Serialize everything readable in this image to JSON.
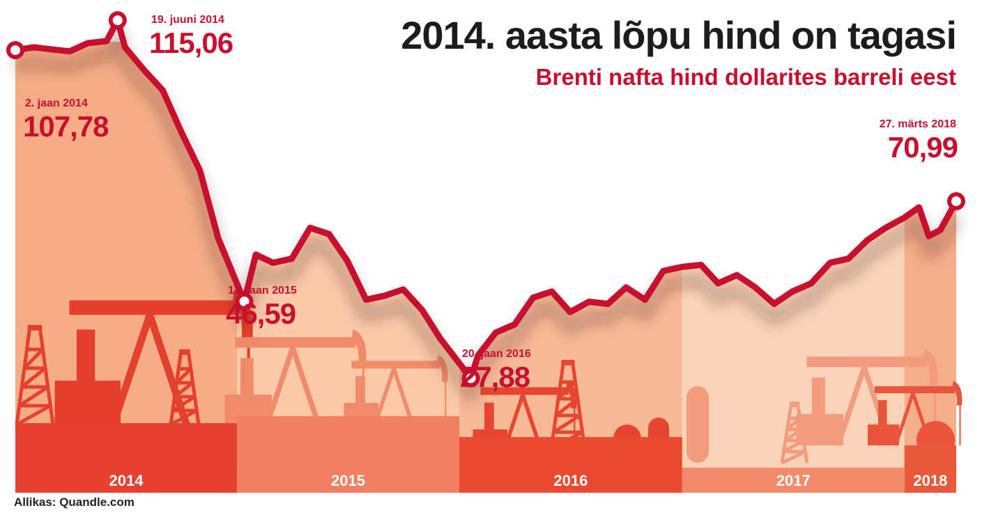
{
  "title": "2014. aasta lõpu hind on tagasi",
  "subtitle": "Brenti nafta hind dollarites barreli eest",
  "source": "Allikas: Quandle.com",
  "colors": {
    "line": "#c8102e",
    "annotation": "#c8102e",
    "title": "#1c1c1c",
    "bands": [
      "#f6ad87",
      "#f9c9a8",
      "#f7b997",
      "#fad3b8",
      "#f6ae8a"
    ],
    "bars": [
      "#e8402e",
      "#f08060",
      "#ea4a2f",
      "#f28a6a",
      "#e95838"
    ]
  },
  "annotations": [
    {
      "date": "2. jaan 2014",
      "value": "107,78"
    },
    {
      "date": "19. juuni 2014",
      "value": "115,06"
    },
    {
      "date": "13. jaan 2015",
      "value": "46,59"
    },
    {
      "date": "20. jaan 2016",
      "value": "27,88"
    },
    {
      "date": "27. märts 2018",
      "value": "70,99"
    }
  ],
  "chart_data": {
    "type": "line",
    "title": "2014. aasta lõpu hind on tagasi",
    "subtitle": "Brenti nafta hind dollarites barreli eest",
    "xlabel": "",
    "ylabel": "",
    "year_labels": [
      "2014",
      "2015",
      "2016",
      "2017",
      "2018"
    ],
    "x_unit": "date",
    "ylim": [
      0,
      120
    ],
    "grid": false,
    "legend": "none",
    "series": [
      {
        "x": [
          "2014-01-02",
          "2014-02-01",
          "2014-03-01",
          "2014-04-01",
          "2014-05-01",
          "2014-06-01",
          "2014-06-19",
          "2014-07-01",
          "2014-08-01",
          "2014-09-01",
          "2014-10-01",
          "2014-11-01",
          "2014-12-01",
          "2015-01-13",
          "2015-02-01",
          "2015-03-01",
          "2015-04-01",
          "2015-05-01",
          "2015-06-01",
          "2015-07-01",
          "2015-08-01",
          "2015-09-01",
          "2015-10-01",
          "2015-11-01",
          "2015-12-01",
          "2016-01-20",
          "2016-02-01",
          "2016-03-01",
          "2016-04-01",
          "2016-05-01",
          "2016-06-01",
          "2016-07-01",
          "2016-08-01",
          "2016-09-01",
          "2016-10-01",
          "2016-11-01",
          "2016-12-01",
          "2017-01-01",
          "2017-02-01",
          "2017-03-01",
          "2017-04-01",
          "2017-05-01",
          "2017-06-01",
          "2017-07-01",
          "2017-08-01",
          "2017-09-01",
          "2017-10-01",
          "2017-11-01",
          "2017-12-01",
          "2018-01-01",
          "2018-01-25",
          "2018-02-10",
          "2018-03-01",
          "2018-03-27"
        ],
        "values": [
          107.78,
          108.5,
          108.0,
          107.5,
          109.5,
          110.0,
          115.06,
          108.5,
          103.0,
          98.0,
          88.0,
          78.5,
          62.0,
          46.59,
          58.0,
          56.0,
          57.0,
          64.5,
          63.0,
          56.5,
          47.0,
          48.0,
          49.5,
          44.5,
          37.5,
          27.88,
          33.5,
          39.0,
          41.0,
          47.5,
          49.0,
          44.0,
          46.5,
          46.0,
          50.0,
          47.0,
          54.0,
          55.0,
          55.5,
          51.0,
          53.0,
          50.0,
          46.0,
          49.0,
          51.0,
          56.0,
          57.0,
          61.5,
          64.5,
          67.0,
          69.5,
          62.5,
          64.0,
          70.99
        ]
      }
    ],
    "annotated_points": [
      {
        "x": "2014-01-02",
        "value": 107.78,
        "label_date": "2. jaan 2014",
        "label_value": "107,78"
      },
      {
        "x": "2014-06-19",
        "value": 115.06,
        "label_date": "19. juuni 2014",
        "label_value": "115,06"
      },
      {
        "x": "2015-01-13",
        "value": 46.59,
        "label_date": "13. jaan 2015",
        "label_value": "46,59"
      },
      {
        "x": "2016-01-20",
        "value": 27.88,
        "label_date": "20. jaan 2016",
        "label_value": "27,88"
      },
      {
        "x": "2018-03-27",
        "value": 70.99,
        "label_date": "27. märts 2018",
        "label_value": "70,99"
      }
    ]
  }
}
